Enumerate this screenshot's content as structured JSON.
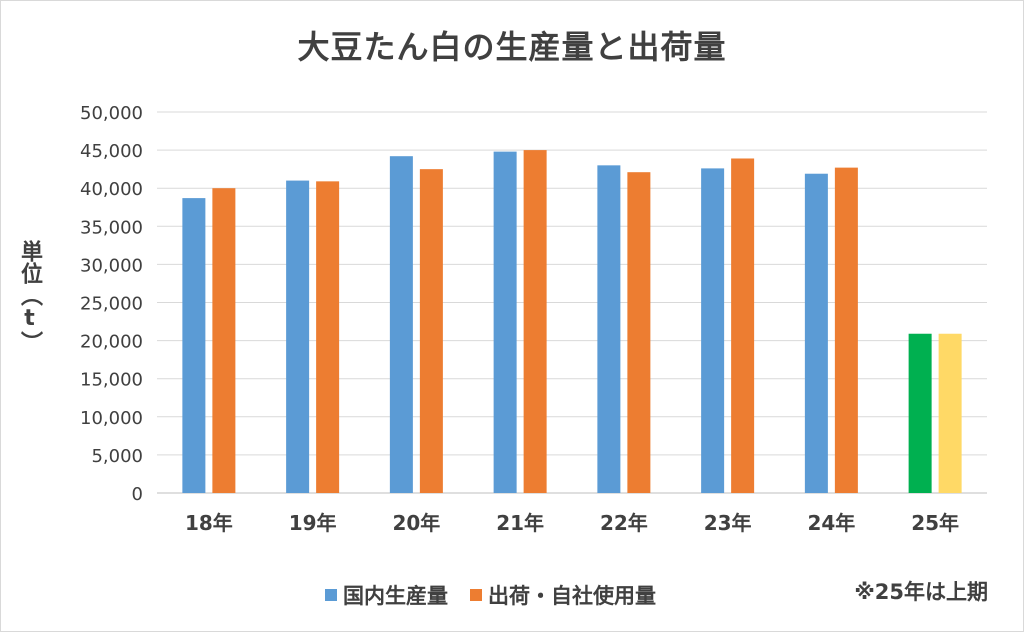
{
  "chart_data": {
    "type": "bar",
    "title": "大豆たん白の生産量と出荷量",
    "ylabel": "単位（t）",
    "xlabel": "",
    "categories": [
      "18年",
      "19年",
      "20年",
      "21年",
      "22年",
      "23年",
      "24年",
      "25年"
    ],
    "ylim": [
      0,
      50000
    ],
    "yticks": [
      "0",
      "5,000",
      "10,000",
      "15,000",
      "20,000",
      "25,000",
      "30,000",
      "35,000",
      "40,000",
      "45,000",
      "50,000"
    ],
    "series": [
      {
        "name": "国内生産量",
        "color": "#5b9bd5",
        "values": [
          38700,
          41000,
          44200,
          44800,
          43000,
          42600,
          41900,
          20900
        ],
        "point_colors": [
          "#5b9bd5",
          "#5b9bd5",
          "#5b9bd5",
          "#5b9bd5",
          "#5b9bd5",
          "#5b9bd5",
          "#5b9bd5",
          "#00b050"
        ]
      },
      {
        "name": "出荷・自社使用量",
        "color": "#ed7d31",
        "values": [
          40000,
          40900,
          42500,
          45000,
          42100,
          43900,
          42700,
          20900
        ],
        "point_colors": [
          "#ed7d31",
          "#ed7d31",
          "#ed7d31",
          "#ed7d31",
          "#ed7d31",
          "#ed7d31",
          "#ed7d31",
          "#ffd966"
        ]
      }
    ],
    "grid": true,
    "legend_position": "bottom",
    "footnote": "※25年は上期"
  }
}
